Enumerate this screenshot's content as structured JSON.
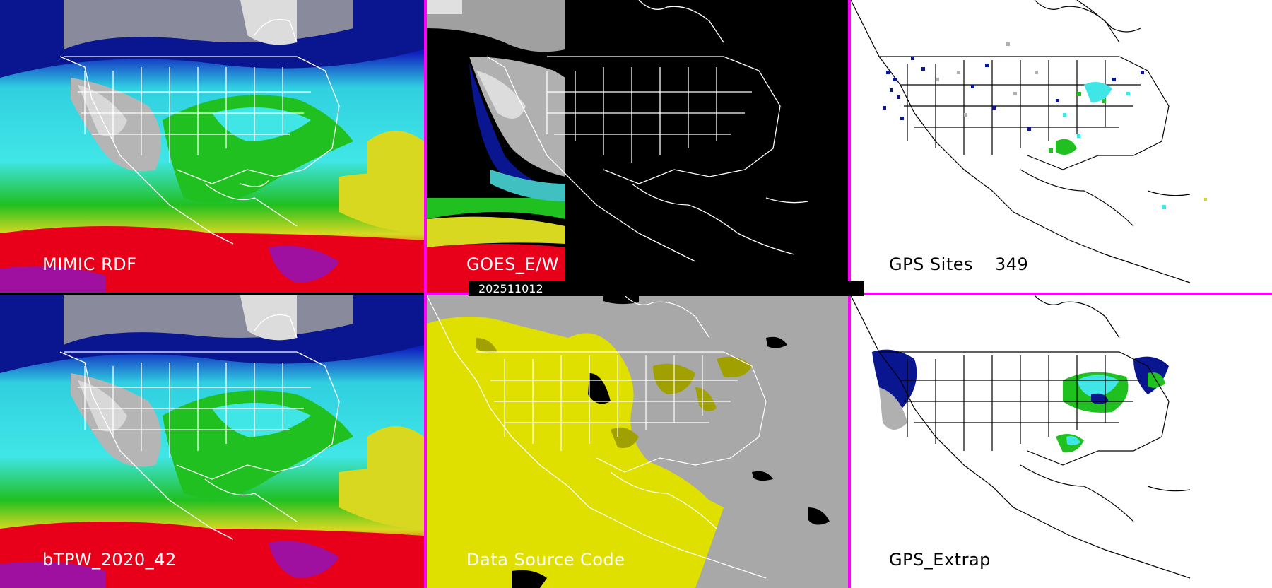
{
  "panels": {
    "mimic_rdf": {
      "label": "MIMIC RDF"
    },
    "goes_ew": {
      "label": "GOES_E/W"
    },
    "gps_sites": {
      "label": "GPS Sites",
      "count": "349"
    },
    "btpw": {
      "label": "bTPW_2020_42"
    },
    "data_source": {
      "label": "Data Source Code"
    },
    "gps_extrap": {
      "label": "GPS_Extrap"
    }
  },
  "timestamp": "202511012",
  "colors": {
    "divider": "#ff00ff",
    "moist_red": "#e8001a",
    "moist_yellow": "#d8d820",
    "moist_green": "#22c01a",
    "moist_cyan": "#40e0e0",
    "moist_blue": "#0a1aa0",
    "dry_gray": "#b0b0b0",
    "source_yellow": "#e0e000",
    "source_olive": "#a0a000",
    "source_gray": "#a8a8a8"
  }
}
